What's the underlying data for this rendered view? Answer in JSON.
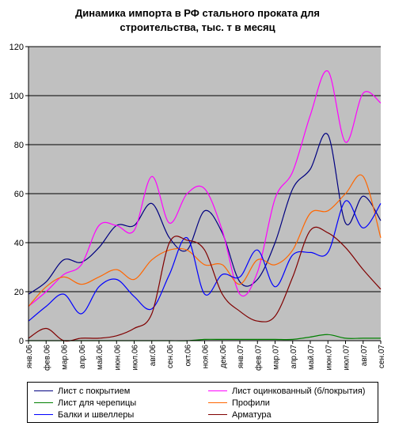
{
  "chart_data": {
    "type": "line",
    "title_lines": [
      "Динамика импорта в РФ стального проката для",
      "строительства, тыс. т в месяц"
    ],
    "xlabel": "",
    "ylabel": "",
    "ylim": [
      0,
      120
    ],
    "yticks": [
      0,
      20,
      40,
      60,
      80,
      100,
      120
    ],
    "grid": "horizontal",
    "legend_position": "bottom",
    "x": [
      "янв.06",
      "фев.06",
      "мар.06",
      "апр.06",
      "май.06",
      "июн.06",
      "июл.06",
      "авг.06",
      "сен.06",
      "окт.06",
      "ноя.06",
      "дек.06",
      "янв.07",
      "фев.07",
      "мар.07",
      "апр.07",
      "май.07",
      "июн.07",
      "июл.07",
      "авг.07",
      "сен.07"
    ],
    "series": [
      {
        "name": "Лист с покрытием",
        "color": "#000080",
        "values": [
          19,
          24,
          33,
          32,
          38,
          47,
          47,
          56,
          42,
          37,
          53,
          44,
          24,
          25,
          40,
          62,
          70,
          84,
          48,
          59,
          49
        ]
      },
      {
        "name": "Лист оцинкованный (б/покрытия)",
        "color": "#ff00ff",
        "values": [
          14,
          20,
          27,
          31,
          47,
          47,
          45,
          67,
          48,
          60,
          62,
          45,
          19,
          28,
          58,
          69,
          92,
          110,
          81,
          101,
          97
        ]
      },
      {
        "name": "Лист для черепицы",
        "color": "#008000",
        "values": [
          0,
          0,
          0,
          0,
          0,
          0,
          0,
          0,
          0,
          0,
          0.5,
          0.5,
          0.5,
          0.5,
          0.5,
          0.5,
          1.5,
          2.5,
          1,
          1,
          1
        ]
      },
      {
        "name": "Профили",
        "color": "#ff6600",
        "values": [
          14,
          22,
          26,
          23,
          26,
          29,
          25,
          33,
          37,
          37,
          31,
          31,
          23,
          33,
          31,
          37,
          52,
          53,
          60,
          67,
          42
        ]
      },
      {
        "name": "Балки и швеллеры",
        "color": "#0000ff",
        "values": [
          8,
          14,
          19,
          11,
          22,
          25,
          18,
          13,
          27,
          42,
          19,
          27,
          26,
          37,
          22,
          35,
          36,
          36,
          57,
          46,
          56
        ]
      },
      {
        "name": "Арматура",
        "color": "#800000",
        "values": [
          1,
          5,
          0,
          1,
          1,
          2,
          5,
          11,
          40,
          41,
          37,
          19,
          12,
          8,
          10,
          26,
          45,
          44,
          38,
          29,
          21
        ]
      }
    ]
  }
}
